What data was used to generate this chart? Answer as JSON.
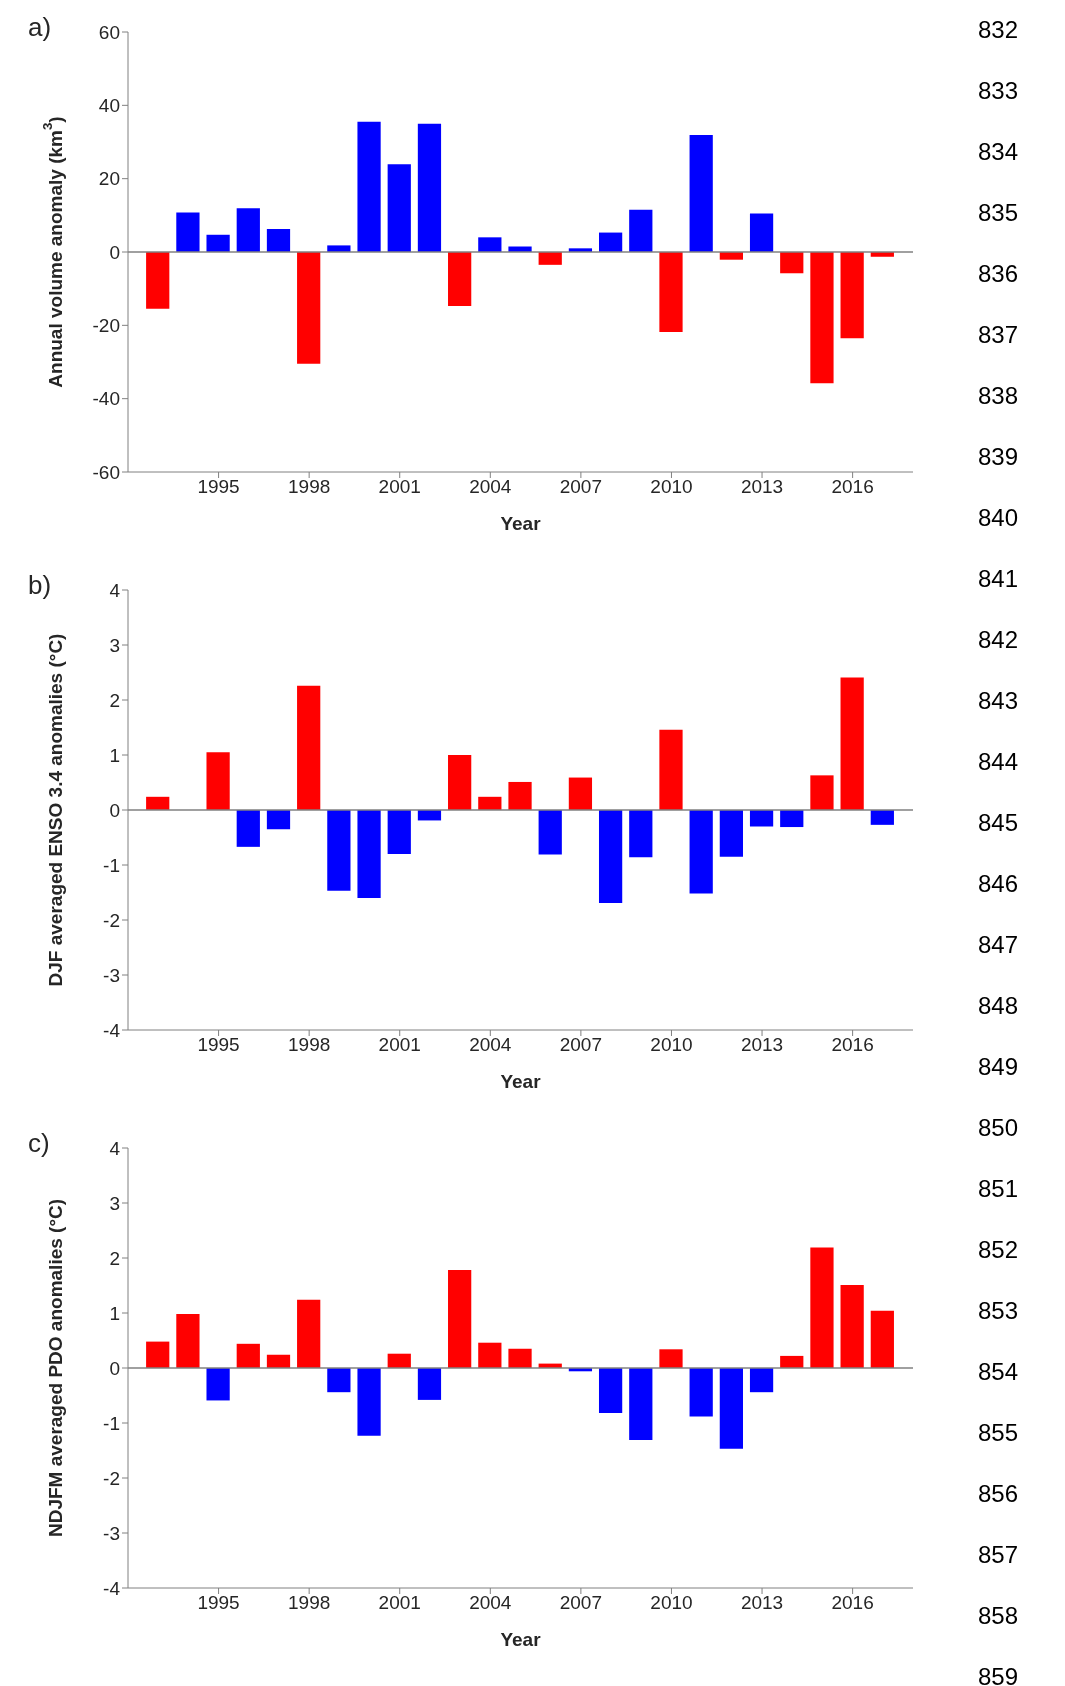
{
  "chart_data": [
    {
      "type": "bar",
      "title": "a)",
      "xlabel": "Year",
      "ylabel": "Annual volume anomaly (km$^{3}$)",
      "x": [
        1993,
        1994,
        1995,
        1996,
        1997,
        1998,
        1999,
        2000,
        2001,
        2002,
        2003,
        2004,
        2005,
        2006,
        2007,
        2008,
        2009,
        2010,
        2011,
        2012,
        2013,
        2014,
        2015,
        2016,
        2017
      ],
      "values": [
        -15.5,
        10.8,
        4.7,
        11.9,
        6.3,
        -30.5,
        1.8,
        35.5,
        23.9,
        35,
        -14.7,
        4,
        1.5,
        -3.5,
        1,
        5.3,
        11.5,
        -21.8,
        31.9,
        -2.1,
        10.5,
        -5.8,
        -35.8,
        -23.5,
        -1.3
      ],
      "colors": [
        "#ff0000",
        "#0000ff",
        "#0000ff",
        "#0000ff",
        "#0000ff",
        "#ff0000",
        "#0000ff",
        "#0000ff",
        "#0000ff",
        "#0000ff",
        "#ff0000",
        "#0000ff",
        "#0000ff",
        "#ff0000",
        "#0000ff",
        "#0000ff",
        "#0000ff",
        "#ff0000",
        "#0000ff",
        "#ff0000",
        "#0000ff",
        "#ff0000",
        "#ff0000",
        "#ff0000",
        "#ff0000"
      ],
      "xlim": [
        1992,
        2018
      ],
      "xticks": [
        1995,
        1998,
        2001,
        2004,
        2007,
        2010,
        2013,
        2016
      ],
      "ylim": [
        -60,
        60
      ],
      "yticks": [
        -60,
        -40,
        -20,
        0,
        20,
        40,
        60
      ],
      "ref_lines": [
        {
          "axis": "y",
          "value": 0,
          "color": "#808080"
        }
      ],
      "annotations": [
        "832",
        "833",
        "834",
        "835",
        "836",
        "837",
        "838",
        "839",
        "840",
        "841",
        "842",
        "843",
        "844",
        "845",
        "846",
        "847",
        "848",
        "849",
        "850",
        "851",
        "852",
        "853",
        "854",
        "855",
        "856",
        "857",
        "858",
        "859"
      ]
    },
    {
      "type": "bar",
      "title": "b)",
      "xlabel": "Year",
      "ylabel": "DJF averaged ENSO 3.4 anomalies (°C)",
      "x": [
        1993,
        1994,
        1995,
        1996,
        1997,
        1998,
        1999,
        2000,
        2001,
        2002,
        2003,
        2004,
        2005,
        2006,
        2007,
        2008,
        2009,
        2010,
        2011,
        2012,
        2013,
        2014,
        2015,
        2016,
        2017
      ],
      "values": [
        0.24,
        0,
        1.05,
        -0.67,
        -0.35,
        2.26,
        -1.47,
        -1.6,
        -0.8,
        -0.19,
        1.0,
        0.24,
        0.51,
        -0.81,
        0.59,
        -1.69,
        -0.86,
        1.46,
        -1.52,
        -0.85,
        -0.3,
        -0.31,
        0.63,
        2.41,
        -0.27
      ],
      "colors": [
        "#ff0000",
        "#ff0000",
        "#ff0000",
        "#0000ff",
        "#0000ff",
        "#ff0000",
        "#0000ff",
        "#0000ff",
        "#0000ff",
        "#0000ff",
        "#ff0000",
        "#ff0000",
        "#ff0000",
        "#0000ff",
        "#ff0000",
        "#0000ff",
        "#0000ff",
        "#ff0000",
        "#0000ff",
        "#0000ff",
        "#0000ff",
        "#0000ff",
        "#ff0000",
        "#ff0000",
        "#0000ff"
      ],
      "xlim": [
        1992,
        2018
      ],
      "xticks": [
        1995,
        1998,
        2001,
        2004,
        2007,
        2010,
        2013,
        2016
      ],
      "ylim": [
        -4,
        4
      ],
      "yticks": [
        -4,
        -3,
        -2,
        -1,
        0,
        1,
        2,
        3,
        4
      ],
      "ref_lines": [
        {
          "axis": "y",
          "value": 0,
          "color": "#808080"
        }
      ]
    },
    {
      "type": "bar",
      "title": "c)",
      "xlabel": "Year",
      "ylabel": "NDJFM averaged PDO anomalies (°C)",
      "x": [
        1993,
        1994,
        1995,
        1996,
        1997,
        1998,
        1999,
        2000,
        2001,
        2002,
        2003,
        2004,
        2005,
        2006,
        2007,
        2008,
        2009,
        2010,
        2011,
        2012,
        2013,
        2014,
        2015,
        2016,
        2017
      ],
      "values": [
        0.48,
        0.98,
        -0.59,
        0.44,
        0.24,
        1.24,
        -0.44,
        -1.23,
        0.26,
        -0.58,
        1.78,
        0.46,
        0.35,
        0.08,
        -0.06,
        -0.82,
        -1.31,
        0.34,
        -0.88,
        -1.47,
        -0.44,
        0.22,
        2.19,
        1.51,
        1.04
      ],
      "colors": [
        "#ff0000",
        "#ff0000",
        "#0000ff",
        "#ff0000",
        "#ff0000",
        "#ff0000",
        "#0000ff",
        "#0000ff",
        "#ff0000",
        "#0000ff",
        "#ff0000",
        "#ff0000",
        "#ff0000",
        "#ff0000",
        "#0000ff",
        "#0000ff",
        "#0000ff",
        "#ff0000",
        "#0000ff",
        "#0000ff",
        "#0000ff",
        "#ff0000",
        "#ff0000",
        "#ff0000",
        "#ff0000"
      ],
      "xlim": [
        1992,
        2018
      ],
      "xticks": [
        1995,
        1998,
        2001,
        2004,
        2007,
        2010,
        2013,
        2016
      ],
      "ylim": [
        -4,
        4
      ],
      "yticks": [
        -4,
        -3,
        -2,
        -1,
        0,
        1,
        2,
        3,
        4
      ],
      "ref_lines": [
        {
          "axis": "y",
          "value": 0,
          "color": "#808080"
        }
      ]
    }
  ]
}
